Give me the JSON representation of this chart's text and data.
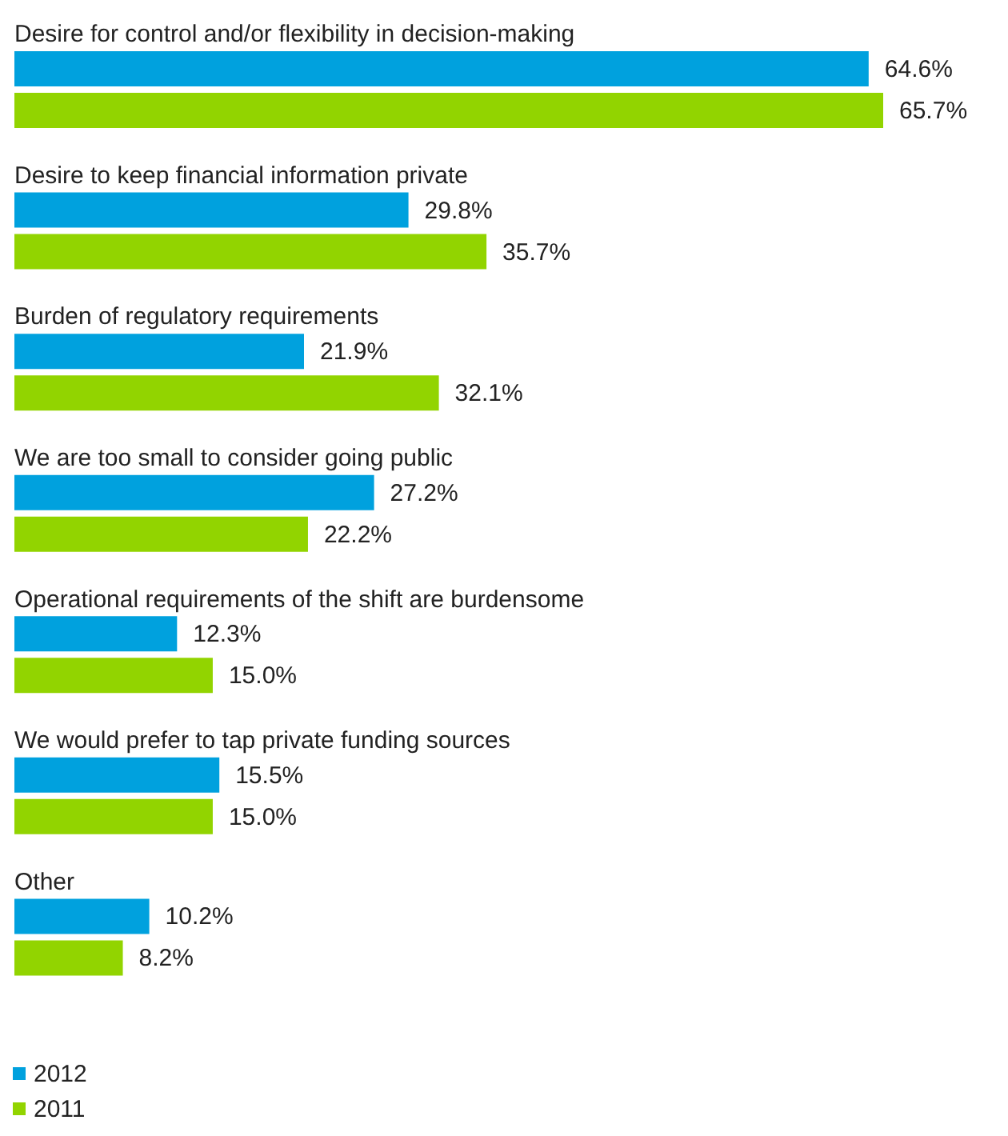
{
  "chart_data": {
    "type": "bar",
    "orientation": "horizontal",
    "relative": false,
    "legend": "bottom left",
    "grid": false,
    "tick_labels": "y",
    "categories": [
      "Desire for control and/or flexibility in decision-making",
      "Desire to keep financial information private",
      "Burden of regulatory requirements",
      "We are too small to consider going public",
      "Operational requirements of the shift are burdensome",
      "We would prefer to tap private funding sources",
      "Other"
    ],
    "series": [
      {
        "name": "2012",
        "color": "#00a1de",
        "values": [
          64.6,
          29.8,
          21.9,
          27.2,
          12.3,
          15.5,
          10.2
        ],
        "value_labels": [
          "64.6%",
          "29.8%",
          "21.9%",
          "27.2%",
          "12.3%",
          "15.5%",
          "10.2%"
        ]
      },
      {
        "name": "2011",
        "color": "#92d400",
        "values": [
          65.7,
          35.7,
          32.1,
          22.2,
          15.0,
          15.0,
          8.2
        ],
        "value_labels": [
          "65.7%",
          "35.7%",
          "32.1%",
          "22.2%",
          "15.0%",
          "15.0%",
          "8.2%"
        ]
      }
    ]
  }
}
